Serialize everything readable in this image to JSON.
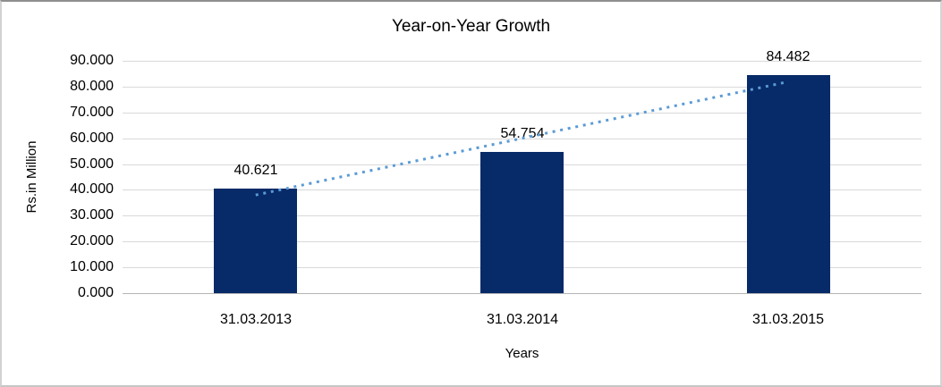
{
  "chart_data": {
    "type": "bar",
    "title": "Year-on-Year Growth",
    "xlabel": "Years",
    "ylabel": "Rs.in Million",
    "categories": [
      "31.03.2013",
      "31.03.2014",
      "31.03.2015"
    ],
    "values": [
      40.621,
      54.754,
      84.482
    ],
    "value_labels": [
      "40.621",
      "54.754",
      "84.482"
    ],
    "ylim": [
      0,
      90
    ],
    "ytick_step": 10,
    "ytick_labels": [
      "0.000",
      "10.000",
      "20.000",
      "30.000",
      "40.000",
      "50.000",
      "60.000",
      "70.000",
      "80.000",
      "90.000"
    ],
    "grid": true,
    "legend": "none",
    "colors": {
      "bar": "#072a68",
      "trendline": "#5b9bd5",
      "gridline": "#d9d9d9",
      "axis_line": "#b5b5b5",
      "text": "#000000"
    },
    "trendline": {
      "type": "linear",
      "style": "dotted"
    }
  }
}
